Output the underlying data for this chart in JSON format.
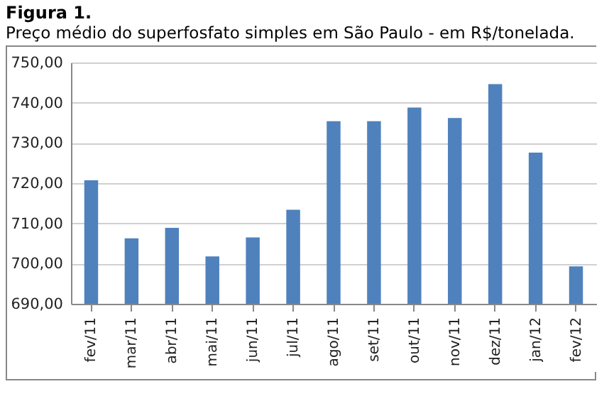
{
  "chart_data": {
    "type": "bar",
    "title": "Figura 1.",
    "subtitle": "Preço médio do superfosfato  simples  em São Paulo - em R$/tonelada.",
    "categories": [
      "fev/11",
      "mar/11",
      "abr/11",
      "mai/11",
      "jun/11",
      "jul/11",
      "ago/11",
      "set/11",
      "out/11",
      "nov/11",
      "dez/11",
      "jan/12",
      "fev/12"
    ],
    "values": [
      720.7,
      706.3,
      708.9,
      701.8,
      706.5,
      713.4,
      735.4,
      735.4,
      738.8,
      736.2,
      744.6,
      727.6,
      699.3
    ],
    "color": "#4f81bd",
    "ylim": [
      690,
      750
    ],
    "yticks": [
      {
        "value": 690,
        "label": "690,00"
      },
      {
        "value": 700,
        "label": "700,00"
      },
      {
        "value": 710,
        "label": "710,00"
      },
      {
        "value": 720,
        "label": "720,00"
      },
      {
        "value": 730,
        "label": "730,00"
      },
      {
        "value": 740,
        "label": "740,00"
      },
      {
        "value": 750,
        "label": "750,00"
      }
    ],
    "grid": "y"
  }
}
